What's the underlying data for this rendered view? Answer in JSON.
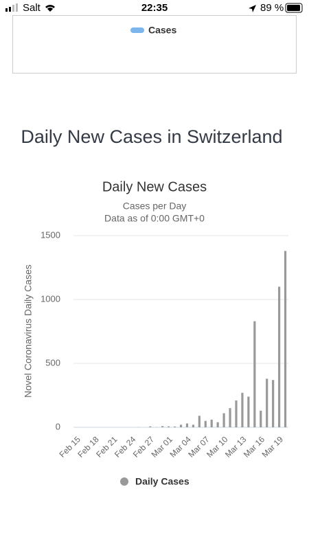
{
  "status_bar": {
    "carrier": "Salt",
    "time": "22:35",
    "battery": "89 %"
  },
  "top_card": {
    "legend": "Cases"
  },
  "heading": "Daily New Cases in Switzerland",
  "chart_data": {
    "type": "bar",
    "title": "Daily New Cases",
    "subtitle": [
      "Cases per Day",
      "Data as of 0:00 GMT+0"
    ],
    "y_label": "Novel Coronavirus Daily Cases",
    "categories": [
      "Feb 15",
      null,
      null,
      "Feb 18",
      null,
      null,
      "Feb 21",
      null,
      null,
      "Feb 24",
      null,
      null,
      "Feb 27",
      null,
      null,
      "Mar 01",
      null,
      null,
      "Mar 04",
      null,
      null,
      "Mar 07",
      null,
      null,
      "Mar 10",
      null,
      null,
      "Mar 13",
      null,
      null,
      "Mar 16",
      null,
      null,
      "Mar 19",
      null
    ],
    "series": [
      {
        "name": "Daily Cases",
        "color": "#999999",
        "values": [
          0,
          0,
          0,
          0,
          0,
          0,
          0,
          0,
          0,
          0,
          1,
          0,
          7,
          1,
          9,
          7,
          6,
          20,
          30,
          20,
          90,
          50,
          60,
          40,
          110,
          150,
          210,
          270,
          240,
          830,
          130,
          380,
          370,
          1100,
          1380
        ]
      }
    ],
    "ylim": [
      0,
      1500
    ],
    "yticks": [
      0,
      500,
      1000,
      1500
    ],
    "grid": true,
    "legend": "bottom"
  }
}
